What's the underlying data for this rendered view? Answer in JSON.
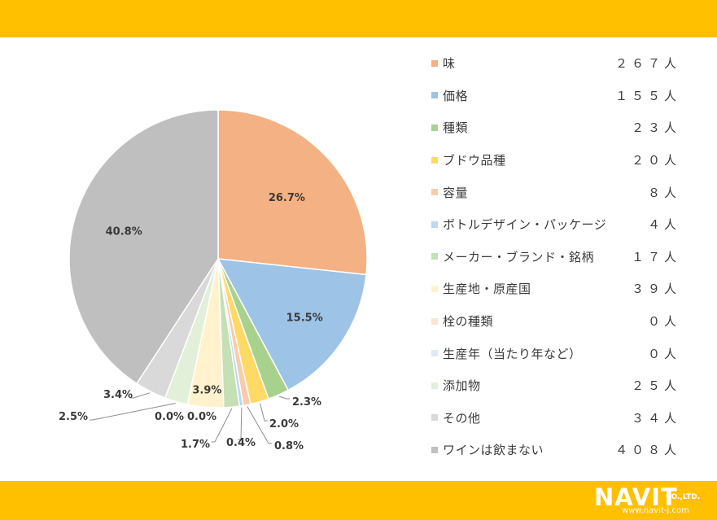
{
  "chart_data": {
    "type": "pie",
    "start_angle_deg": 0,
    "direction": "clockwise",
    "legend_position": "right",
    "slices": [
      {
        "label": "味",
        "count_label": "２６７人",
        "value": 26.7,
        "value_label": "26.7%",
        "color": "#F4B183"
      },
      {
        "label": "価格",
        "count_label": "１５５人",
        "value": 15.5,
        "value_label": "15.5%",
        "color": "#9DC3E6"
      },
      {
        "label": "種類",
        "count_label": "２３人",
        "value": 2.3,
        "value_label": "2.3%",
        "color": "#A9D18E"
      },
      {
        "label": "ブドウ品種",
        "count_label": "２０人",
        "value": 2.0,
        "value_label": "2.0%",
        "color": "#FFD966"
      },
      {
        "label": "容量",
        "count_label": "８人",
        "value": 0.8,
        "value_label": "0.8%",
        "color": "#F8CBAD"
      },
      {
        "label": "ボトルデザイン・パッケージ",
        "count_label": "４人",
        "value": 0.4,
        "value_label": "0.4%",
        "color": "#BDD7EE"
      },
      {
        "label": "メーカー・ブランド・銘柄",
        "count_label": "１７人",
        "value": 1.7,
        "value_label": "1.7%",
        "color": "#C5E0B4"
      },
      {
        "label": "生産地・原産国",
        "count_label": "３９人",
        "value": 3.9,
        "value_label": "3.9%",
        "color": "#FFF2CC"
      },
      {
        "label": "栓の種類",
        "count_label": "０人",
        "value": 0.0,
        "value_label": "0.0%",
        "color": "#FBE5D6"
      },
      {
        "label": "生産年（当たり年など）",
        "count_label": "０人",
        "value": 0.0,
        "value_label": "0.0%",
        "color": "#DEEBF7"
      },
      {
        "label": "添加物",
        "count_label": "２５人",
        "value": 2.5,
        "value_label": "2.5%",
        "color": "#E2F0D9"
      },
      {
        "label": "その他",
        "count_label": "３４人",
        "value": 3.4,
        "value_label": "3.4%",
        "color": "#D9D9D9"
      },
      {
        "label": "ワインは飲まない",
        "count_label": "４０８人",
        "value": 40.8,
        "value_label": "40.8%",
        "color": "#BFBFBF"
      }
    ]
  },
  "footer": {
    "logo_text": "NAVIT",
    "logo_suffix": "CO.,LTD.",
    "logo_url": "www.navit-j.com"
  },
  "colors": {
    "band": "#FFC000",
    "text": "#3a3a3a",
    "leader_line": "#8c8c8c"
  }
}
